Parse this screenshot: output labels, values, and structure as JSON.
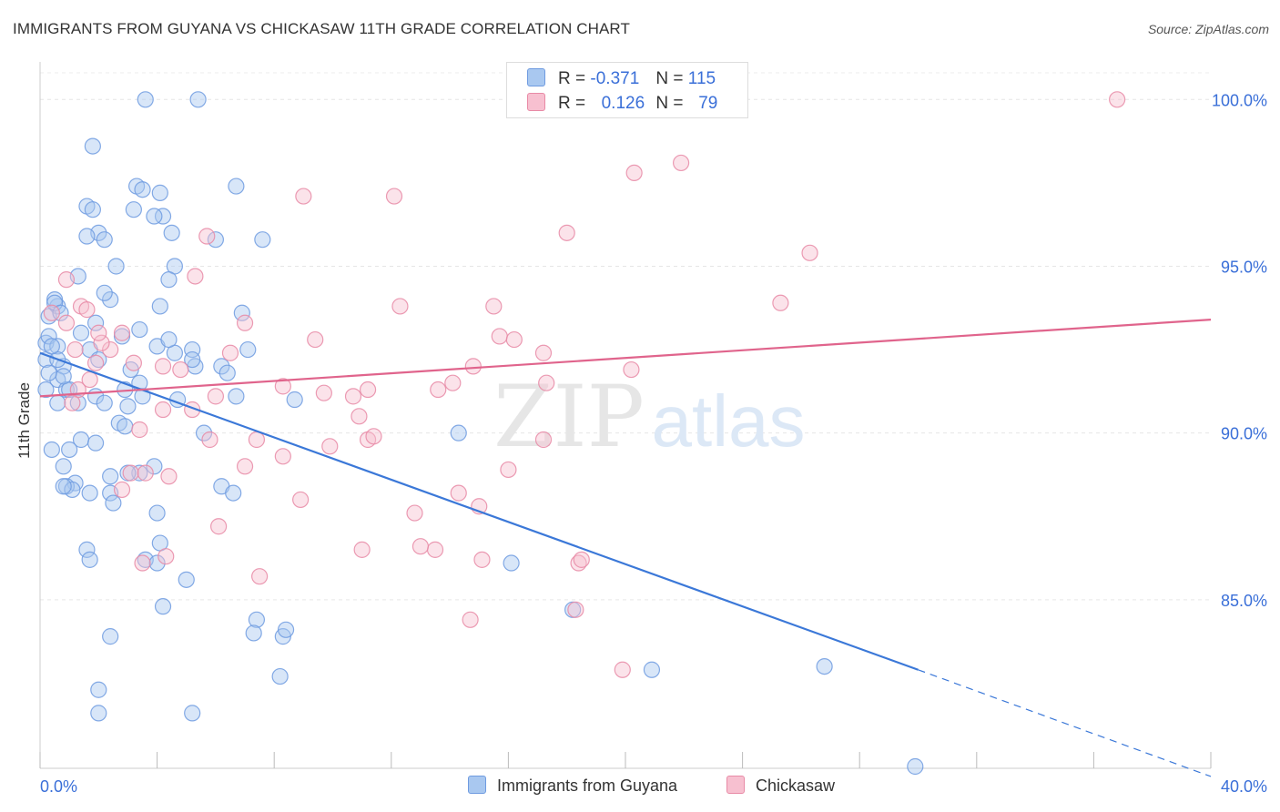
{
  "title": "IMMIGRANTS FROM GUYANA VS CHICKASAW 11TH GRADE CORRELATION CHART",
  "source": "Source: ZipAtlas.com",
  "watermark": {
    "zip": "ZIP",
    "atlas": "atlas"
  },
  "legend": {
    "rows": [
      {
        "r_label": "R =",
        "r_value": "-0.371",
        "n_label": "N =",
        "n_value": "115",
        "color": "#a9c8f0",
        "border": "#6f9be0"
      },
      {
        "r_label": "R =",
        "r_value": "0.126",
        "n_label": "N =",
        "n_value": "79",
        "color": "#f7c0d0",
        "border": "#e88aa6"
      }
    ]
  },
  "bottom_legend": [
    {
      "label": "Immigrants from Guyana",
      "color": "#a9c8f0",
      "border": "#6f9be0"
    },
    {
      "label": "Chickasaw",
      "color": "#f7c0d0",
      "border": "#e88aa6"
    }
  ],
  "chart_data": {
    "type": "scatter",
    "title": "IMMIGRANTS FROM GUYANA VS CHICKASAW 11TH GRADE CORRELATION CHART",
    "xlabel": "",
    "ylabel": "11th Grade",
    "xlim": [
      0,
      40
    ],
    "ylim": [
      80,
      100.8
    ],
    "x_tick_labels": [
      "0.0%",
      "40.0%"
    ],
    "y_ticks": [
      85,
      90,
      95,
      100
    ],
    "y_tick_labels": [
      "85.0%",
      "90.0%",
      "95.0%",
      "100.0%"
    ],
    "grid": true,
    "legend_position": "top-center",
    "series": [
      {
        "name": "Immigrants from Guyana",
        "color": "#6f9be0",
        "fill": "#a9c8f0",
        "trend": {
          "x0": 0,
          "y0": 92.4,
          "x1": 30,
          "y1": 82.9,
          "dashed_to_x": 40,
          "dashed_to_y": 79.7,
          "color": "#3b78d8"
        },
        "x": [
          3.6,
          5.4,
          1.8,
          3.3,
          3.5,
          4.1,
          1.6,
          1.8,
          3.2,
          2.0,
          1.6,
          6.7,
          4.2,
          3.9,
          4.5,
          2.2,
          2.6,
          4.6,
          6.0,
          1.3,
          2.4,
          4.4,
          2.2,
          0.6,
          4.1,
          6.9,
          7.6,
          0.3,
          0.5,
          1.9,
          2.8,
          1.4,
          0.2,
          3.4,
          4.0,
          5.2,
          1.7,
          2.0,
          4.6,
          5.3,
          3.1,
          6.2,
          0.8,
          0.2,
          0.6,
          3.4,
          6.4,
          0.9,
          1.0,
          2.9,
          1.9,
          6.7,
          3.5,
          1.3,
          2.2,
          4.7,
          8.7,
          3.0,
          2.7,
          0.6,
          1.4,
          2.9,
          5.6,
          1.0,
          14.3,
          1.9,
          0.4,
          0.8,
          1.2,
          2.4,
          3.9,
          3.4,
          0.9,
          6.2,
          1.7,
          2.4,
          1.1,
          0.8,
          6.6,
          2.5,
          3.0,
          4.0,
          1.6,
          4.1,
          1.7,
          3.6,
          5.0,
          4.0,
          16.1,
          18.2,
          7.4,
          2.4,
          8.3,
          4.2,
          2.0,
          26.8,
          7.3,
          8.4,
          8.2,
          20.9,
          2.0,
          5.2,
          29.9,
          0.8,
          0.2,
          0.3,
          0.5,
          0.6,
          0.6,
          0.4,
          0.3,
          0.7,
          4.4,
          5.2,
          7.1
        ],
        "y": [
          100.0,
          100.0,
          98.6,
          97.4,
          97.3,
          97.2,
          96.8,
          96.7,
          96.7,
          96.0,
          95.9,
          97.4,
          96.5,
          96.5,
          96.0,
          95.8,
          95.0,
          95.0,
          95.8,
          94.7,
          94.0,
          94.6,
          94.2,
          93.8,
          93.8,
          93.6,
          95.8,
          93.5,
          94.0,
          93.3,
          92.9,
          93.0,
          92.7,
          93.1,
          92.6,
          92.5,
          92.5,
          92.2,
          92.4,
          92.0,
          91.9,
          92.0,
          92.0,
          92.2,
          91.6,
          91.5,
          91.8,
          91.3,
          91.3,
          91.3,
          91.1,
          91.1,
          91.1,
          90.9,
          90.9,
          91.0,
          91.0,
          90.8,
          90.3,
          90.9,
          89.8,
          90.2,
          90.0,
          89.5,
          90.0,
          89.7,
          89.5,
          89.0,
          88.5,
          88.7,
          89.0,
          88.8,
          88.4,
          88.4,
          88.2,
          88.2,
          88.3,
          88.4,
          88.2,
          87.9,
          88.8,
          87.6,
          86.5,
          86.7,
          86.2,
          86.2,
          85.6,
          86.1,
          86.1,
          84.7,
          84.4,
          83.9,
          83.9,
          84.8,
          82.3,
          83.0,
          84.0,
          84.1,
          82.7,
          82.9,
          81.6,
          81.6,
          80.0,
          91.7,
          91.3,
          92.9,
          93.9,
          92.6,
          92.2,
          92.6,
          91.8,
          93.6,
          92.8,
          92.2,
          92.5
        ]
      },
      {
        "name": "Chickasaw",
        "color": "#e88aa6",
        "fill": "#f7c0d0",
        "trend": {
          "x0": 0,
          "y0": 91.1,
          "x1": 40,
          "y1": 93.4,
          "color": "#e0648c"
        },
        "x": [
          36.8,
          21.9,
          20.3,
          12.1,
          9.0,
          18.0,
          26.3,
          5.7,
          0.9,
          5.3,
          15.5,
          12.3,
          15.7,
          16.2,
          25.3,
          1.4,
          1.6,
          7.0,
          2.8,
          2.4,
          1.2,
          9.4,
          14.8,
          11.2,
          20.2,
          3.2,
          4.2,
          6.5,
          1.9,
          2.1,
          8.3,
          4.8,
          1.3,
          14.1,
          17.3,
          13.6,
          9.7,
          10.7,
          6.0,
          4.2,
          3.4,
          5.2,
          1.7,
          1.1,
          0.4,
          0.9,
          2.0,
          5.8,
          3.1,
          10.9,
          9.9,
          4.4,
          11.2,
          2.8,
          7.4,
          3.6,
          8.3,
          7.0,
          11.4,
          6.1,
          12.8,
          14.3,
          13.5,
          11.0,
          13.0,
          15.0,
          17.2,
          16.0,
          18.4,
          4.3,
          7.5,
          3.5,
          14.7,
          8.9,
          15.1,
          18.3,
          19.9,
          18.5,
          17.2
        ],
        "y": [
          100.0,
          98.1,
          97.8,
          97.1,
          97.1,
          96.0,
          95.4,
          95.9,
          94.6,
          94.7,
          93.8,
          93.8,
          92.9,
          92.8,
          93.9,
          93.8,
          93.7,
          93.3,
          93.0,
          92.5,
          92.5,
          92.8,
          92.0,
          91.3,
          91.9,
          92.1,
          92.0,
          92.4,
          92.1,
          92.7,
          91.4,
          91.9,
          91.3,
          91.5,
          91.5,
          91.3,
          91.2,
          91.1,
          91.1,
          90.7,
          90.1,
          90.7,
          91.6,
          90.9,
          93.6,
          93.3,
          93.0,
          89.8,
          88.8,
          90.5,
          89.6,
          88.7,
          89.8,
          88.3,
          89.8,
          88.8,
          89.3,
          89.0,
          89.9,
          87.2,
          87.6,
          88.2,
          86.5,
          86.5,
          86.6,
          87.8,
          89.8,
          88.9,
          86.1,
          86.3,
          85.7,
          86.1,
          84.4,
          88.0,
          86.2,
          84.7,
          82.9,
          86.2,
          92.4
        ]
      }
    ]
  }
}
